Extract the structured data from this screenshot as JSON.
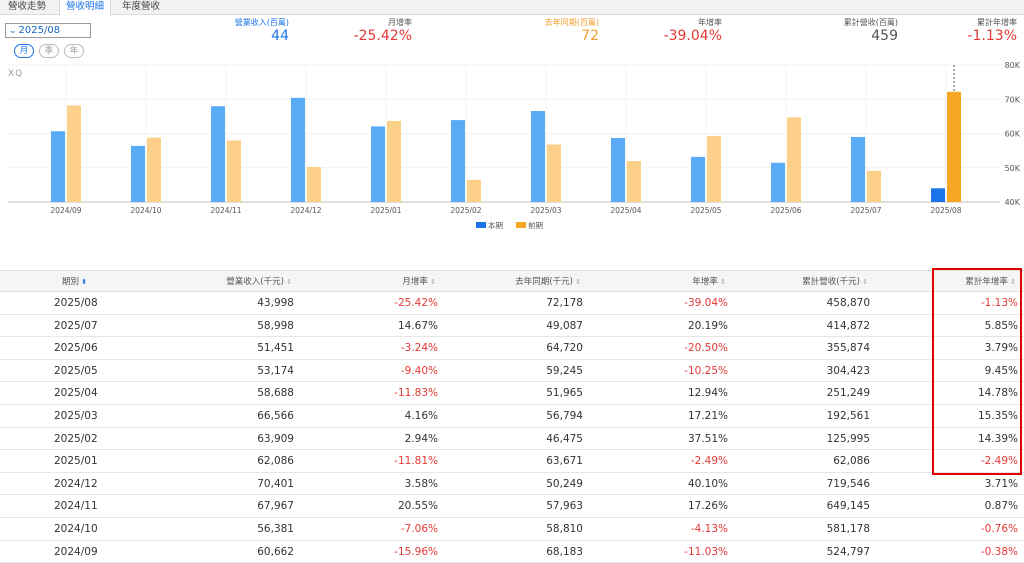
{
  "tabs": [
    {
      "label": "營收走勢",
      "active": false
    },
    {
      "label": "營收明細",
      "active": true
    },
    {
      "label": "年度營收",
      "active": false
    }
  ],
  "period": {
    "value": "2025/08"
  },
  "range_buttons": [
    {
      "label": "月",
      "active": true
    },
    {
      "label": "季",
      "active": false
    },
    {
      "label": "年",
      "active": false
    }
  ],
  "summary": [
    {
      "label": "營業收入(百萬)",
      "value": "44",
      "label_color": "#1a73e8",
      "value_color": "#1a73e8"
    },
    {
      "label": "月增率",
      "value": "-25.42%",
      "label_color": "#555555",
      "value_color": "#e53935"
    },
    {
      "label": "去年同期(百萬)",
      "value": "72",
      "label_color": "#f0a030",
      "value_color": "#f0a030"
    },
    {
      "label": "年增率",
      "value": "-39.04%",
      "label_color": "#555555",
      "value_color": "#e53935"
    },
    {
      "label": "累計營收(百萬)",
      "value": "459",
      "label_color": "#555555",
      "value_color": "#555555"
    },
    {
      "label": "累計年增率",
      "value": "-1.13%",
      "label_color": "#555555",
      "value_color": "#e53935"
    }
  ],
  "watermark": "XQ",
  "chart_data": {
    "type": "bar",
    "categories": [
      "2024/09",
      "2024/10",
      "2024/11",
      "2024/12",
      "2025/01",
      "2025/02",
      "2025/03",
      "2025/04",
      "2025/05",
      "2025/06",
      "2025/07",
      "2025/08"
    ],
    "series": [
      {
        "name": "本期",
        "values": [
          60662,
          56381,
          67967,
          70401,
          62086,
          63909,
          66566,
          58688,
          53174,
          51451,
          58998,
          43998
        ],
        "color": "#5aabf5",
        "highlight_color": "#1a73e8"
      },
      {
        "name": "前期",
        "values": [
          68183,
          58810,
          57963,
          50249,
          63671,
          46475,
          56794,
          51965,
          59245,
          64720,
          49087,
          72178
        ],
        "color": "#fdd089",
        "highlight_color": "#f5a623"
      }
    ],
    "ylim": [
      40000,
      80000
    ],
    "yticks": [
      "40K",
      "50K",
      "60K",
      "70K",
      "80K"
    ],
    "ytick_values": [
      40000,
      50000,
      60000,
      70000,
      80000
    ],
    "highlight_index": 11
  },
  "table": {
    "headers": [
      "期別",
      "營業收入(千元)",
      "月增率",
      "去年同期(千元)",
      "年增率",
      "累計營收(千元)",
      "累計年增率"
    ],
    "rows": [
      [
        "2025/08",
        "43,998",
        "-25.42%",
        "72,178",
        "-39.04%",
        "458,870",
        "-1.13%"
      ],
      [
        "2025/07",
        "58,998",
        "14.67%",
        "49,087",
        "20.19%",
        "414,872",
        "5.85%"
      ],
      [
        "2025/06",
        "51,451",
        "-3.24%",
        "64,720",
        "-20.50%",
        "355,874",
        "3.79%"
      ],
      [
        "2025/05",
        "53,174",
        "-9.40%",
        "59,245",
        "-10.25%",
        "304,423",
        "9.45%"
      ],
      [
        "2025/04",
        "58,688",
        "-11.83%",
        "51,965",
        "12.94%",
        "251,249",
        "14.78%"
      ],
      [
        "2025/03",
        "66,566",
        "4.16%",
        "56,794",
        "17.21%",
        "192,561",
        "15.35%"
      ],
      [
        "2025/02",
        "63,909",
        "2.94%",
        "46,475",
        "37.51%",
        "125,995",
        "14.39%"
      ],
      [
        "2025/01",
        "62,086",
        "-11.81%",
        "63,671",
        "-2.49%",
        "62,086",
        "-2.49%"
      ],
      [
        "2024/12",
        "70,401",
        "3.58%",
        "50,249",
        "40.10%",
        "719,546",
        "3.71%"
      ],
      [
        "2024/11",
        "67,967",
        "20.55%",
        "57,963",
        "17.26%",
        "649,145",
        "0.87%"
      ],
      [
        "2024/10",
        "56,381",
        "-7.06%",
        "58,810",
        "-4.13%",
        "581,178",
        "-0.76%"
      ],
      [
        "2024/09",
        "60,662",
        "-15.96%",
        "68,183",
        "-11.03%",
        "524,797",
        "-0.38%"
      ]
    ]
  }
}
